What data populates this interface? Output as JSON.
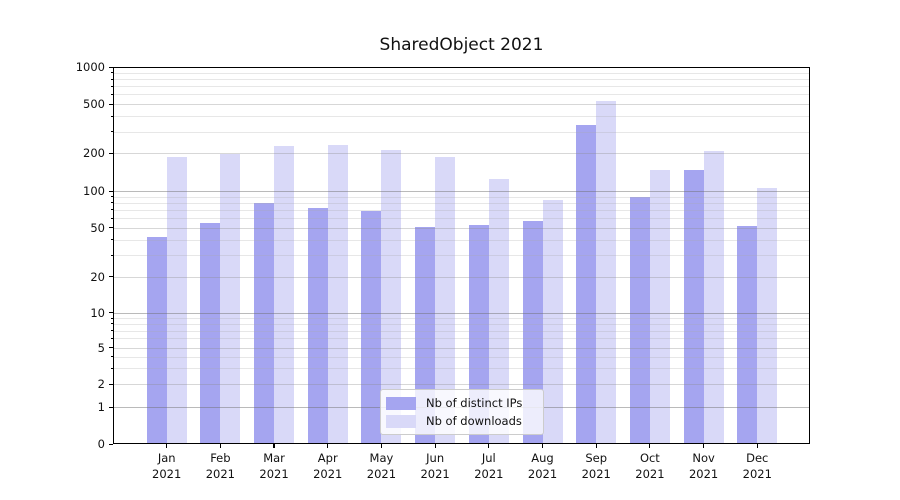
{
  "chart_data": {
    "type": "bar",
    "title": "SharedObject 2021",
    "categories": [
      "Jan",
      "Feb",
      "Mar",
      "Apr",
      "May",
      "Jun",
      "Jul",
      "Aug",
      "Sep",
      "Oct",
      "Nov",
      "Dec"
    ],
    "x_axis": {
      "year_label": "2021"
    },
    "series": [
      {
        "name": "Nb of distinct IPs",
        "color": "#a5a5f0",
        "values": [
          42,
          55,
          80,
          73,
          69,
          51,
          53,
          57,
          340,
          90,
          148,
          52
        ]
      },
      {
        "name": "Nb of downloads",
        "color": "#d9d9f8",
        "values": [
          186,
          197,
          228,
          232,
          212,
          186,
          125,
          84,
          530,
          146,
          210,
          106
        ]
      }
    ],
    "y_axis": {
      "scale": "symlog",
      "ticks": [
        0,
        1,
        2,
        5,
        10,
        20,
        50,
        100,
        200,
        500,
        1000
      ],
      "range": [
        0,
        1000
      ]
    },
    "grid": "both",
    "legend_position": "lower center"
  }
}
